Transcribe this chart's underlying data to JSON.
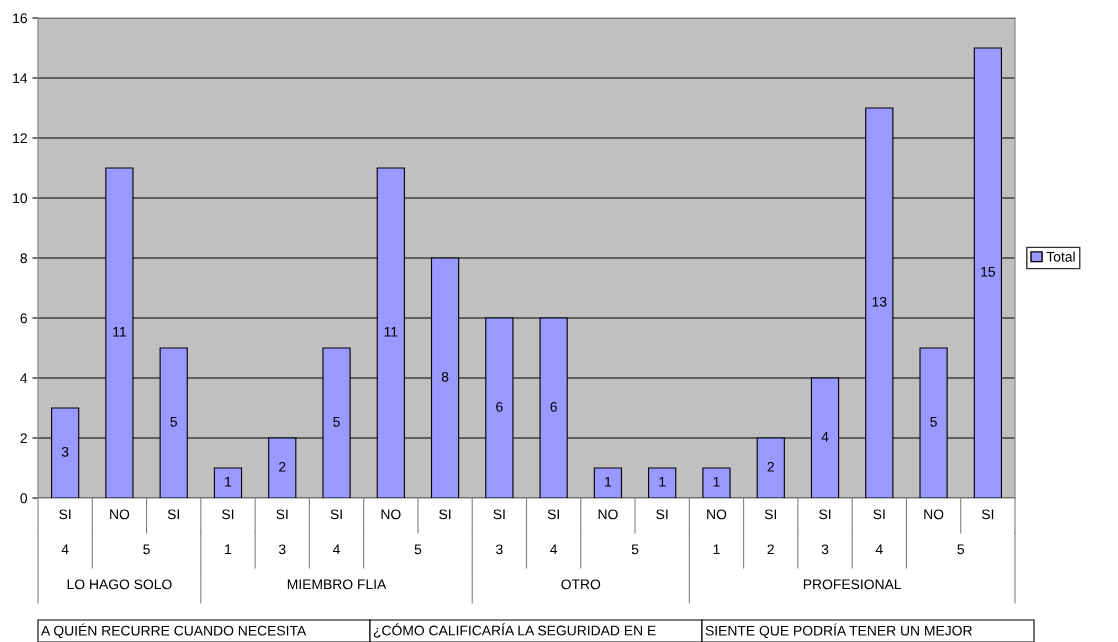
{
  "chart_data": {
    "type": "bar",
    "categories": [
      "SI",
      "NO",
      "SI",
      "SI",
      "SI",
      "SI",
      "NO",
      "SI",
      "SI",
      "SI",
      "NO",
      "SI",
      "NO",
      "SI",
      "SI",
      "SI",
      "NO",
      "SI"
    ],
    "series": [
      {
        "name": "Total",
        "color": "#9999ff",
        "values": [
          3,
          11,
          5,
          1,
          2,
          5,
          11,
          8,
          6,
          6,
          1,
          1,
          1,
          2,
          4,
          13,
          5,
          15
        ]
      }
    ],
    "ylim": [
      0,
      16
    ],
    "yticks": [
      0,
      2,
      4,
      6,
      8,
      10,
      12,
      14,
      16
    ],
    "grid": "y",
    "legend": "right",
    "data_labels": true,
    "annotations": [
      "4",
      "5",
      "1",
      "3",
      "4",
      "5",
      "3",
      "4",
      "5",
      "1",
      "2",
      "3",
      "4",
      "5",
      "LO HAGO SOLO",
      "MIEMBRO FLIA",
      "OTRO",
      "PROFESIONAL",
      "A QUIÉN RECURRE CUANDO NECESITA",
      "¿CÓMO CALIFICARÍA LA SEGURIDAD EN E",
      "SIENTE QUE PODRÍA TENER UN MEJOR"
    ]
  }
}
